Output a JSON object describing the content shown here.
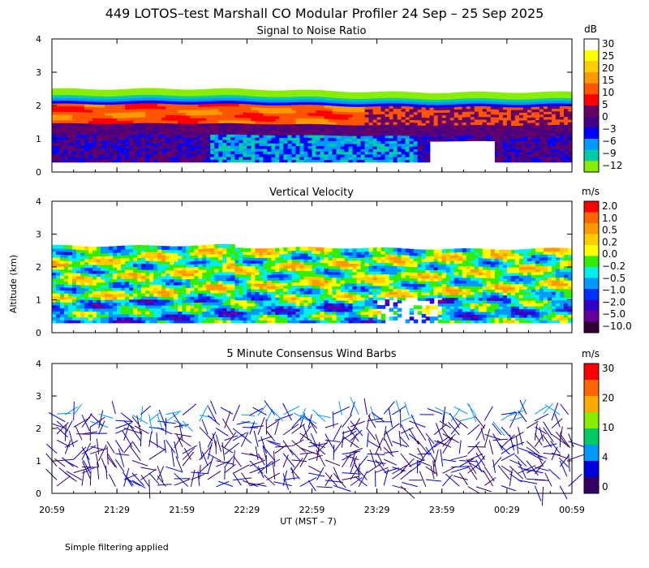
{
  "title": "449 LOTOS–test Marshall CO Modular Profiler 24 Sep – 25 Sep 2025",
  "footnote": "Simple filtering applied",
  "chart_data": {
    "type": "heatmap",
    "xlabel": "UT  (MST – 7)",
    "ylabel": "Altitude (km)",
    "xticks": [
      "20:59",
      "21:29",
      "21:59",
      "22:29",
      "22:59",
      "23:29",
      "23:59",
      "00:29",
      "00:59"
    ],
    "yticks": [
      "0",
      "1",
      "2",
      "3",
      "4"
    ],
    "ylim": [
      0,
      4
    ],
    "panels": [
      {
        "title": "Signal to Noise Ratio",
        "unit": "dB",
        "type": "heatmap",
        "colorbar_labels": [
          "30",
          "25",
          "20",
          "15",
          "10",
          "5",
          "0",
          "−3",
          "−6",
          "−9",
          "−12"
        ],
        "colorbar_colors": [
          "#ffffff",
          "#ffff00",
          "#ffcc00",
          "#ff9900",
          "#ff5500",
          "#ff0000",
          "#660066",
          "#440088",
          "#0000ff",
          "#0099ff",
          "#00ccaa",
          "#88ee00"
        ]
      },
      {
        "title": "Vertical Velocity",
        "unit": "m/s",
        "type": "heatmap",
        "colorbar_labels": [
          "2.0",
          "1.0",
          "0.5",
          "0.2",
          "0.0",
          "−0.2",
          "−0.5",
          "−1.0",
          "−2.0",
          "−5.0",
          "−10.0"
        ],
        "colorbar_colors": [
          "#ff0000",
          "#ff6600",
          "#ff9900",
          "#ffcc00",
          "#ffff00",
          "#33ee00",
          "#00eeee",
          "#0099ff",
          "#0033ff",
          "#3300cc",
          "#660099",
          "#330033"
        ]
      },
      {
        "title": "5 Minute Consensus Wind Barbs",
        "unit": "m/s",
        "type": "wind-barbs",
        "colorbar_labels": [
          "30",
          "20",
          "10",
          "4",
          "0"
        ],
        "colorbar_colors": [
          "#ff0000",
          "#ff6600",
          "#ffaa00",
          "#88ee00",
          "#00cc66",
          "#0099ff",
          "#0000dd",
          "#330066"
        ]
      }
    ]
  }
}
